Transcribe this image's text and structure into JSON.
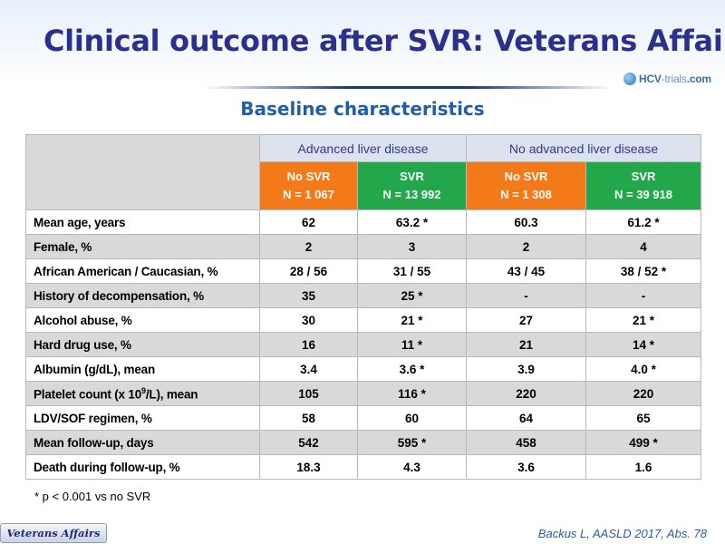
{
  "title": "Clinical outcome after SVR: Veterans Affairs",
  "logo": {
    "text_main": "HCV",
    "text_thin": "-trials",
    "text_tail": ".com"
  },
  "subtitle": "Baseline characteristics",
  "table": {
    "groups": [
      "Advanced liver disease",
      "No advanced liver disease"
    ],
    "columns": [
      {
        "line1": "No SVR",
        "line2": "N = 1 067",
        "color": "#f47a19"
      },
      {
        "line1": "SVR",
        "line2": "N = 13 992",
        "color": "#22a84a"
      },
      {
        "line1": "No SVR",
        "line2": "N = 1 308",
        "color": "#f47a19"
      },
      {
        "line1": "SVR",
        "line2": "N = 39 918",
        "color": "#22a84a"
      }
    ],
    "rows": [
      {
        "label": "Mean age, years",
        "values": [
          "62",
          "63.2 *",
          "60.3",
          "61.2 *"
        ]
      },
      {
        "label": "Female, %",
        "values": [
          "2",
          "3",
          "2",
          "4"
        ]
      },
      {
        "label": "African American / Caucasian, %",
        "values": [
          "28 / 56",
          "31 / 55",
          "43 / 45",
          "38 / 52 *"
        ]
      },
      {
        "label": "History of decompensation, %",
        "values": [
          "35",
          "25 *",
          "-",
          "-"
        ]
      },
      {
        "label": "Alcohol abuse, %",
        "values": [
          "30",
          "21 *",
          "27",
          "21 *"
        ]
      },
      {
        "label": "Hard drug use, %",
        "values": [
          "16",
          "11 *",
          "21",
          "14 *"
        ]
      },
      {
        "label": "Albumin (g/dL), mean",
        "values": [
          "3.4",
          "3.6 *",
          "3.9",
          "4.0 *"
        ]
      },
      {
        "label_pre": "Platelet count (x 10",
        "label_sup": "9",
        "label_post": "/L), mean",
        "values": [
          "105",
          "116 *",
          "220",
          "220"
        ]
      },
      {
        "label": "LDV/SOF regimen, %",
        "values": [
          "58",
          "60",
          "64",
          "65"
        ]
      },
      {
        "label": "Mean follow-up, days",
        "values": [
          "542",
          "595 *",
          "458",
          "499 *"
        ]
      },
      {
        "label": "Death during follow-up, %",
        "values": [
          "18.3",
          "4.3",
          "3.6",
          "1.6"
        ]
      }
    ]
  },
  "footnote": "* p < 0.001 vs no SVR",
  "badge": "Veterans Affairs",
  "citation": "Backus L, AASLD 2017, Abs. 78"
}
